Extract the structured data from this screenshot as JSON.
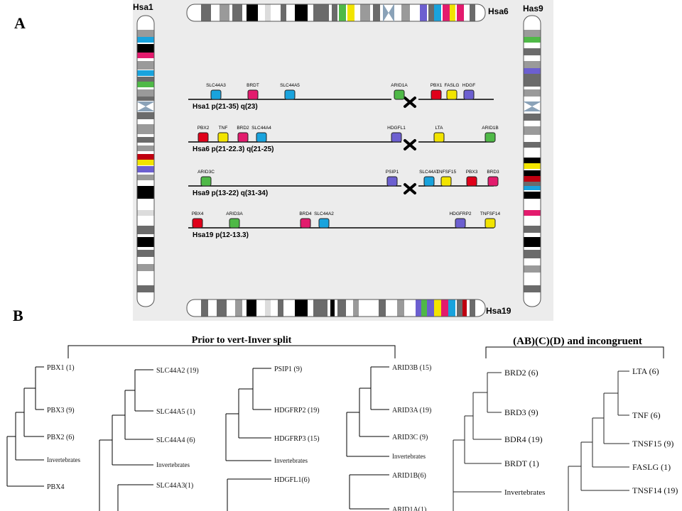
{
  "panelA": {
    "letter": "A",
    "chromosomes": {
      "left": "Hsa1",
      "right": "Has9",
      "top": "Hsa6",
      "bottom": "Hsa19"
    },
    "tracks": [
      {
        "label": "Hsa1 p(21-35) q(23)",
        "left_genes": [
          {
            "name": "SLC44A3",
            "color": "#19a3dd"
          },
          {
            "name": "BRDT",
            "color": "#e31b6d"
          },
          {
            "name": "SLC44A5",
            "color": "#19a3dd"
          }
        ],
        "right_genes": [
          {
            "name": "ARID1A",
            "color": "#4fb947"
          },
          {
            "name": "PBX1",
            "color": "#e0001a"
          },
          {
            "name": "FASLG",
            "color": "#f2e400"
          },
          {
            "name": "HDGF",
            "color": "#6c5fd0"
          }
        ]
      },
      {
        "label": "Hsa6 p(21-22.3) q(21-25)",
        "left_genes": [
          {
            "name": "PBX2",
            "color": "#e0001a"
          },
          {
            "name": "TNF",
            "color": "#f2e400"
          },
          {
            "name": "BRD2",
            "color": "#e31b6d"
          },
          {
            "name": "SLC44A4",
            "color": "#19a3dd"
          }
        ],
        "right_genes": [
          {
            "name": "HDGFL1",
            "color": "#6c5fd0"
          },
          {
            "name": "LTA",
            "color": "#f2e400"
          },
          {
            "name": "ARID1B",
            "color": "#4fb947"
          }
        ]
      },
      {
        "label": "Hsa9 p(13-22) q(31-34)",
        "left_genes": [
          {
            "name": "ARID3C",
            "color": "#4fb947"
          }
        ],
        "right_genes": [
          {
            "name": "PSIP1",
            "color": "#6c5fd0"
          },
          {
            "name": "SLC44A1",
            "color": "#19a3dd"
          },
          {
            "name": "TNFSF15",
            "color": "#f2e400"
          },
          {
            "name": "PBX3",
            "color": "#e0001a"
          },
          {
            "name": "BRD3",
            "color": "#e31b6d"
          }
        ]
      },
      {
        "label": "Hsa19 p(12-13.3)",
        "left_genes": [
          {
            "name": "PBX4",
            "color": "#e0001a"
          },
          {
            "name": "ARID3A",
            "color": "#4fb947"
          },
          {
            "name": "BRD4",
            "color": "#e31b6d"
          },
          {
            "name": "SLC44A2",
            "color": "#19a3dd"
          }
        ],
        "right_genes": [
          {
            "name": "HDGFRP2",
            "color": "#6c5fd0"
          },
          {
            "name": "TNFSF14",
            "color": "#f2e400"
          }
        ]
      }
    ],
    "breakpoint_icon": "cross-icon"
  },
  "panelB": {
    "letter": "B",
    "group1_title": "Prior to vert-Inver split",
    "group2_title": "(AB)(C)(D) and incongruent",
    "trees": [
      {
        "id": "pbx",
        "leaves": [
          "PBX1 (1)",
          "PBX3 (9)",
          "PBX2 (6)",
          "Invertebrates",
          "PBX4"
        ]
      },
      {
        "id": "slc44",
        "leaves": [
          "SLC44A2 (19)",
          "SLC44A5 (1)",
          "SLC44A4 (6)",
          "Invertebrates",
          "SLC44A3(1)"
        ]
      },
      {
        "id": "hdgf",
        "leaves": [
          "PSIP1 (9)",
          "HDGFRP2 (19)",
          "HDGFRP3 (15)",
          "Invertebrates",
          "HDGFL1(6)"
        ]
      },
      {
        "id": "arid",
        "leaves": [
          "ARID3B (15)",
          "ARID3A (19)",
          "ARID3C (9)",
          "Invertebrates",
          "ARID1B(6)",
          "ARID1A(1)"
        ]
      },
      {
        "id": "brd",
        "leaves": [
          "BRD2 (6)",
          "BRD3 (9)",
          "BDR4 (19)",
          "BRDT (1)",
          "Invertebrates"
        ]
      },
      {
        "id": "tnf",
        "leaves": [
          "LTA (6)",
          "TNF (6)",
          "TNSF15 (9)",
          "FASLG (1)",
          "TNSF14 (19)"
        ]
      }
    ]
  }
}
